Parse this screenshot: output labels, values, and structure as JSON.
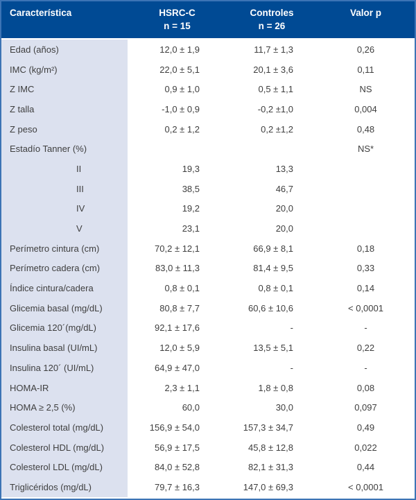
{
  "colors": {
    "header_bg": "#004a94",
    "header_text": "#ffffff",
    "border": "#3c74b5",
    "label_column_bg": "#dce1ef",
    "body_text": "#3e3e3e"
  },
  "table": {
    "columns": [
      {
        "label": "Característica",
        "sub": ""
      },
      {
        "label": "HSRC-C",
        "sub": "n = 15"
      },
      {
        "label": "Controles",
        "sub": "n = 26"
      },
      {
        "label": "Valor p",
        "sub": ""
      }
    ],
    "rows": [
      {
        "label": "Edad (años)",
        "hsrc": "12,0 ± 1,9",
        "controles": "11,7 ± 1,3",
        "p": "0,26",
        "indent": false
      },
      {
        "label": "IMC (kg/m²)",
        "hsrc": "22,0 ± 5,1",
        "controles": "20,1 ± 3,6",
        "p": "0,11",
        "indent": false
      },
      {
        "label": "Z IMC",
        "hsrc": "0,9 ± 1,0",
        "controles": "0,5 ± 1,1",
        "p": "NS",
        "indent": false
      },
      {
        "label": "Z talla",
        "hsrc": "-1,0 ± 0,9",
        "controles": "-0,2 ±1,0",
        "p": "0,004",
        "indent": false
      },
      {
        "label": "Z peso",
        "hsrc": "0,2 ± 1,2",
        "controles": "0,2 ±1,2",
        "p": "0,48",
        "indent": false
      },
      {
        "label": "Estadío Tanner (%)",
        "hsrc": "",
        "controles": "",
        "p": "NS*",
        "indent": false
      },
      {
        "label": "II",
        "hsrc": "19,3",
        "controles": "13,3",
        "p": "",
        "indent": true
      },
      {
        "label": "III",
        "hsrc": "38,5",
        "controles": "46,7",
        "p": "",
        "indent": true
      },
      {
        "label": "IV",
        "hsrc": "19,2",
        "controles": "20,0",
        "p": "",
        "indent": true
      },
      {
        "label": "V",
        "hsrc": "23,1",
        "controles": "20,0",
        "p": "",
        "indent": true
      },
      {
        "label": "Perímetro cintura (cm)",
        "hsrc": "70,2 ± 12,1",
        "controles": "66,9 ± 8,1",
        "p": "0,18",
        "indent": false
      },
      {
        "label": "Perímetro cadera (cm)",
        "hsrc": "83,0 ± 11,3",
        "controles": "81,4 ± 9,5",
        "p": "0,33",
        "indent": false
      },
      {
        "label": "Índice cintura/cadera",
        "hsrc": "0,8 ± 0,1",
        "controles": "0,8 ± 0,1",
        "p": "0,14",
        "indent": false
      },
      {
        "label": "Glicemia basal (mg/dL)",
        "hsrc": "80,8 ± 7,7",
        "controles": "60,6 ± 10,6",
        "p": "< 0,0001",
        "indent": false
      },
      {
        "label": "Glicemia 120´(mg/dL)",
        "hsrc": "92,1 ± 17,6",
        "controles": "-",
        "p": "-",
        "indent": false
      },
      {
        "label": "Insulina basal (UI/mL)",
        "hsrc": "12,0 ± 5,9",
        "controles": "13,5 ± 5,1",
        "p": "0,22",
        "indent": false
      },
      {
        "label": "Insulina 120´ (UI/mL)",
        "hsrc": "64,9 ± 47,0",
        "controles": "-",
        "p": "-",
        "indent": false
      },
      {
        "label": "HOMA-IR",
        "hsrc": "2,3 ± 1,1",
        "controles": "1,8 ± 0,8",
        "p": "0,08",
        "indent": false
      },
      {
        "label": "HOMA ≥ 2,5 (%)",
        "hsrc": "60,0",
        "controles": "30,0",
        "p": "0,097",
        "indent": false
      },
      {
        "label": "Colesterol total (mg/dL)",
        "hsrc": "156,9 ± 54,0",
        "controles": "157,3 ± 34,7",
        "p": "0,49",
        "indent": false
      },
      {
        "label": "Colesterol HDL (mg/dL)",
        "hsrc": "56,9 ± 17,5",
        "controles": "45,8 ± 12,8",
        "p": "0,022",
        "indent": false
      },
      {
        "label": "Colesterol LDL (mg/dL)",
        "hsrc": "84,0 ± 52,8",
        "controles": "82,1 ± 31,3",
        "p": "0,44",
        "indent": false
      },
      {
        "label": "Triglicéridos (mg/dL)",
        "hsrc": "79,7 ± 16,3",
        "controles": "147,0 ± 69,3",
        "p": "< 0,0001",
        "indent": false
      }
    ]
  }
}
